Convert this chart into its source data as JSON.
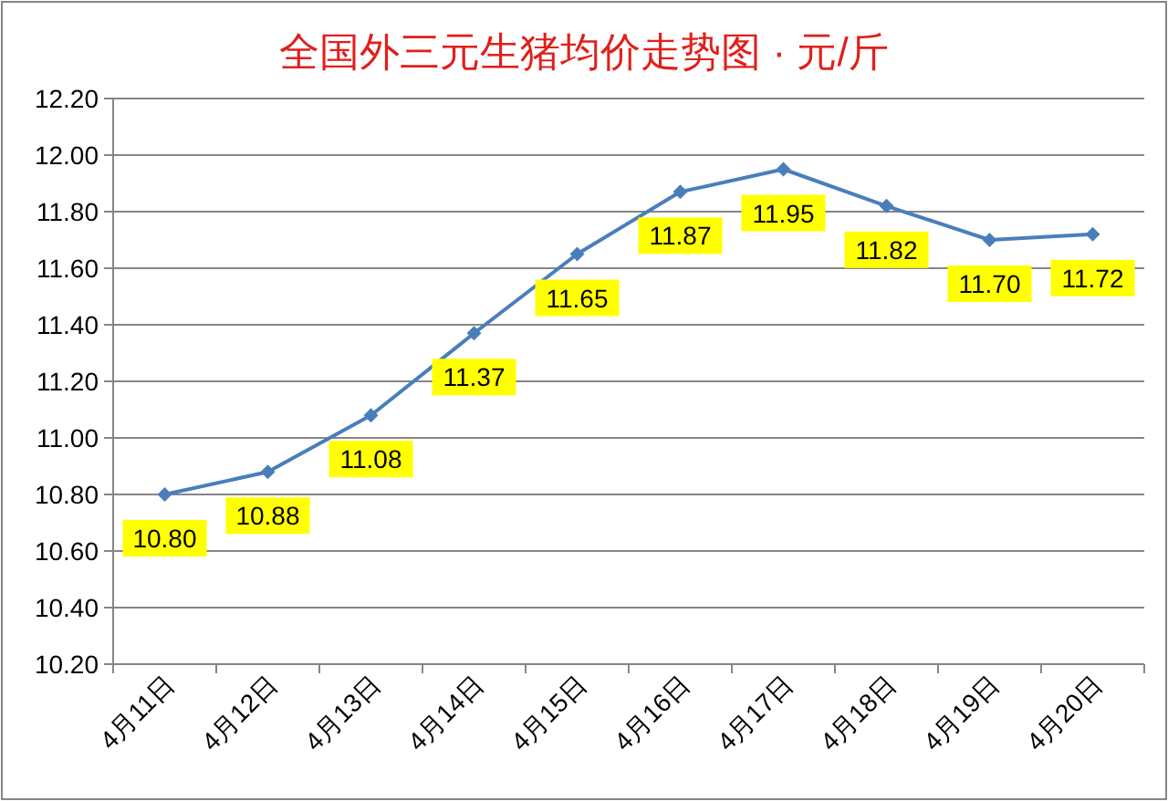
{
  "chart_data": {
    "type": "line",
    "title": "全国外三元生猪均价走势图 · 元/斤",
    "categories": [
      "4月11日",
      "4月12日",
      "4月13日",
      "4月14日",
      "4月15日",
      "4月16日",
      "4月17日",
      "4月18日",
      "4月19日",
      "4月20日"
    ],
    "values": [
      10.8,
      10.88,
      11.08,
      11.37,
      11.65,
      11.87,
      11.95,
      11.82,
      11.7,
      11.72
    ],
    "value_labels": [
      "10.80",
      "10.88",
      "11.08",
      "11.37",
      "11.65",
      "11.87",
      "11.95",
      "11.82",
      "11.70",
      "11.72"
    ],
    "color": "#4a7ebb",
    "marker": "diamond",
    "grid": "y",
    "ylim": [
      10.2,
      12.2
    ],
    "yticks": [
      {
        "value": 10.2,
        "label": "10.20"
      },
      {
        "value": 10.4,
        "label": "10.40"
      },
      {
        "value": 10.6,
        "label": "10.60"
      },
      {
        "value": 10.8,
        "label": "10.80"
      },
      {
        "value": 11.0,
        "label": "11.00"
      },
      {
        "value": 11.2,
        "label": "11.20"
      },
      {
        "value": 11.4,
        "label": "11.40"
      },
      {
        "value": 11.6,
        "label": "11.60"
      },
      {
        "value": 11.8,
        "label": "11.80"
      },
      {
        "value": 12.0,
        "label": "12.00"
      },
      {
        "value": 12.2,
        "label": "12.20"
      }
    ]
  }
}
